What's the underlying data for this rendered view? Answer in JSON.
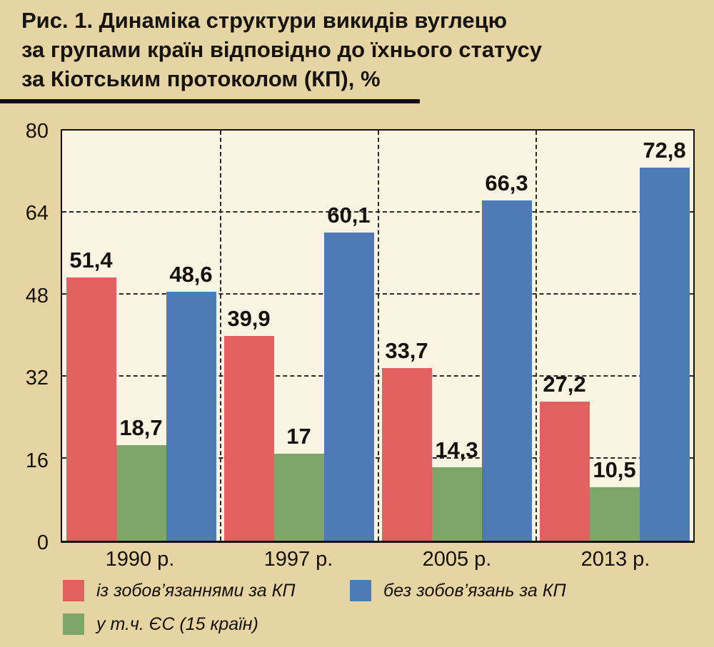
{
  "title": {
    "line1": "Рис. 1. Динаміка структури викидів вуглецю",
    "line2": "за групами країн відповідно до їхнього статусу",
    "line3": "за Кіотським протоколом (КП), %"
  },
  "colors": {
    "background": "#e6d5a3",
    "plot_bg": "#faf4e3",
    "axis": "#14110d",
    "series_red": "#e2605f",
    "series_green": "#7ea669",
    "series_blue": "#4e7bb5"
  },
  "chart_data": {
    "type": "bar",
    "title": "Рис. 1. Динаміка структури викидів вуглецю за групами країн відповідно до їхнього статусу за Кіотським протоколом (КП), %",
    "categories": [
      "1990 р.",
      "1997 р.",
      "2005 р.",
      "2013 р."
    ],
    "series": [
      {
        "name": "із зобов’язаннями за КП",
        "color_key": "series_red",
        "values": [
          51.4,
          39.9,
          33.7,
          27.2
        ],
        "labels": [
          "51,4",
          "39,9",
          "33,7",
          "27,2"
        ]
      },
      {
        "name": "у т.ч. ЄС (15 країн)",
        "color_key": "series_green",
        "values": [
          18.7,
          17,
          14.3,
          10.5
        ],
        "labels": [
          "18,7",
          "17",
          "14,3",
          "10,5"
        ]
      },
      {
        "name": "без зобов’язань за КП",
        "color_key": "series_blue",
        "values": [
          48.6,
          60.1,
          66.3,
          72.8
        ],
        "labels": [
          "48,6",
          "60,1",
          "66,3",
          "72,8"
        ]
      }
    ],
    "xlabel": "",
    "ylabel": "",
    "ylim": [
      0,
      80
    ],
    "yticks": [
      0,
      16,
      32,
      48,
      64,
      80
    ],
    "grid": "dashed horizontal gridlines at each y tick, dashed vertical separators between category groups",
    "legend_position": "bottom"
  },
  "legend": {
    "items": [
      {
        "label": "із зобов’язаннями за КП",
        "color_key": "series_red"
      },
      {
        "label": "без зобов’язань за КП",
        "color_key": "series_blue"
      },
      {
        "label": "у т.ч. ЄС (15 країн)",
        "color_key": "series_green"
      }
    ]
  }
}
